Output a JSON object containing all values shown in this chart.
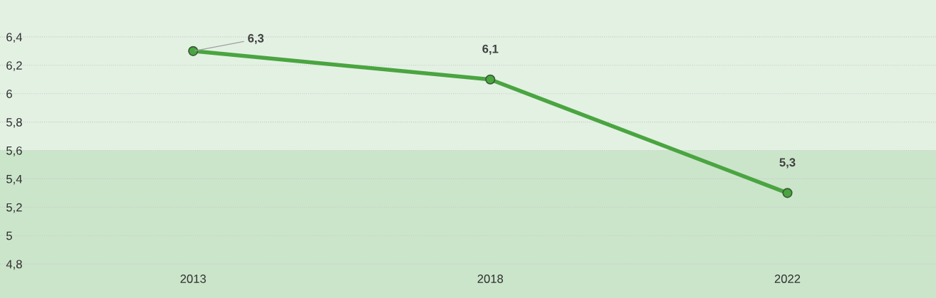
{
  "chart_data": {
    "type": "line",
    "categories": [
      "2013",
      "2018",
      "2022"
    ],
    "series": [
      {
        "color": "#4aa540",
        "values": [
          6.3,
          6.1,
          5.3
        ],
        "value_labels": [
          "6,3",
          "6,1",
          "5,3"
        ]
      }
    ],
    "ylim": [
      4.56,
      6.66
    ],
    "yticks": [
      {
        "value": 4.8,
        "label": "4,8"
      },
      {
        "value": 5,
        "label": "5"
      },
      {
        "value": 5.2,
        "label": "5,2"
      },
      {
        "value": 5.4,
        "label": "5,4"
      },
      {
        "value": 5.6,
        "label": "5,6"
      },
      {
        "value": 5.8,
        "label": "5,8"
      },
      {
        "value": 6,
        "label": "6"
      },
      {
        "value": 6.2,
        "label": "6,2"
      },
      {
        "value": 6.4,
        "label": "6,4"
      }
    ],
    "bands": [
      {
        "axis": "y",
        "from": 4.56,
        "to": 5.6,
        "color": "#cbe5ca"
      }
    ],
    "grid": "y",
    "marker": "circle",
    "line_style": "solid",
    "legend": false
  }
}
